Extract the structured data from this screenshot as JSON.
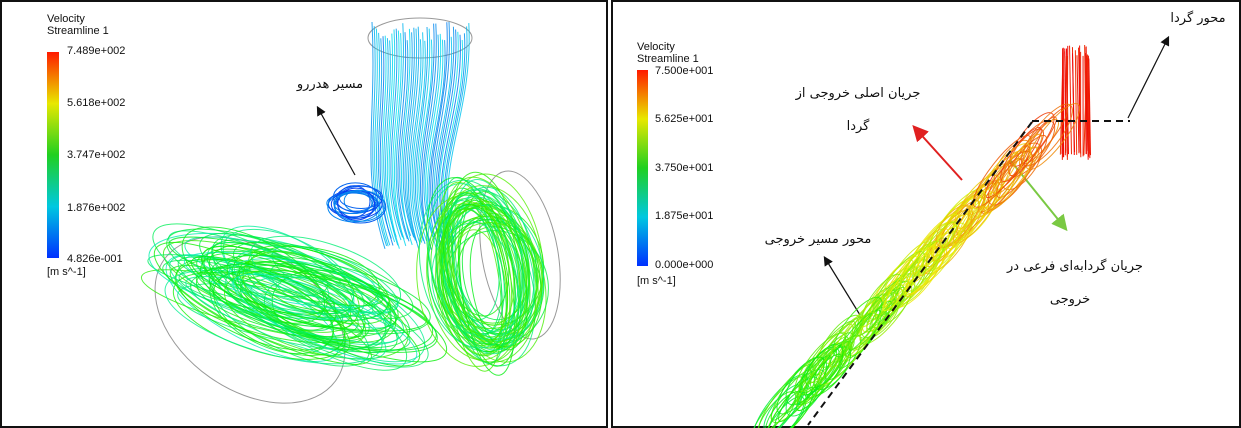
{
  "panels": [
    {
      "legend": {
        "title": "Velocity",
        "subtitle": "Streamline 1",
        "ticks": [
          "7.489e+002",
          "5.618e+002",
          "3.747e+002",
          "1.876e+002",
          "4.826e-001"
        ],
        "unit": "[m s^-1]"
      },
      "annotations": [
        {
          "lines": [
            "مسیر هدررو"
          ]
        }
      ]
    },
    {
      "legend": {
        "title": "Velocity",
        "subtitle": "Streamline 1",
        "ticks": [
          "7.500e+001",
          "5.625e+001",
          "3.750e+001",
          "1.875e+001",
          "0.000e+000"
        ],
        "unit": "[m s^-1]"
      },
      "annotations": [
        {
          "lines": [
            "جریان اصلی خروجی از",
            "گردا"
          ]
        },
        {
          "lines": [
            "جریان گردابه‌ای فرعی در",
            "خروجی"
          ]
        },
        {
          "lines": [
            "محور مسیر خروجی"
          ]
        },
        {
          "lines": [
            "محور گردا"
          ]
        }
      ]
    }
  ]
}
